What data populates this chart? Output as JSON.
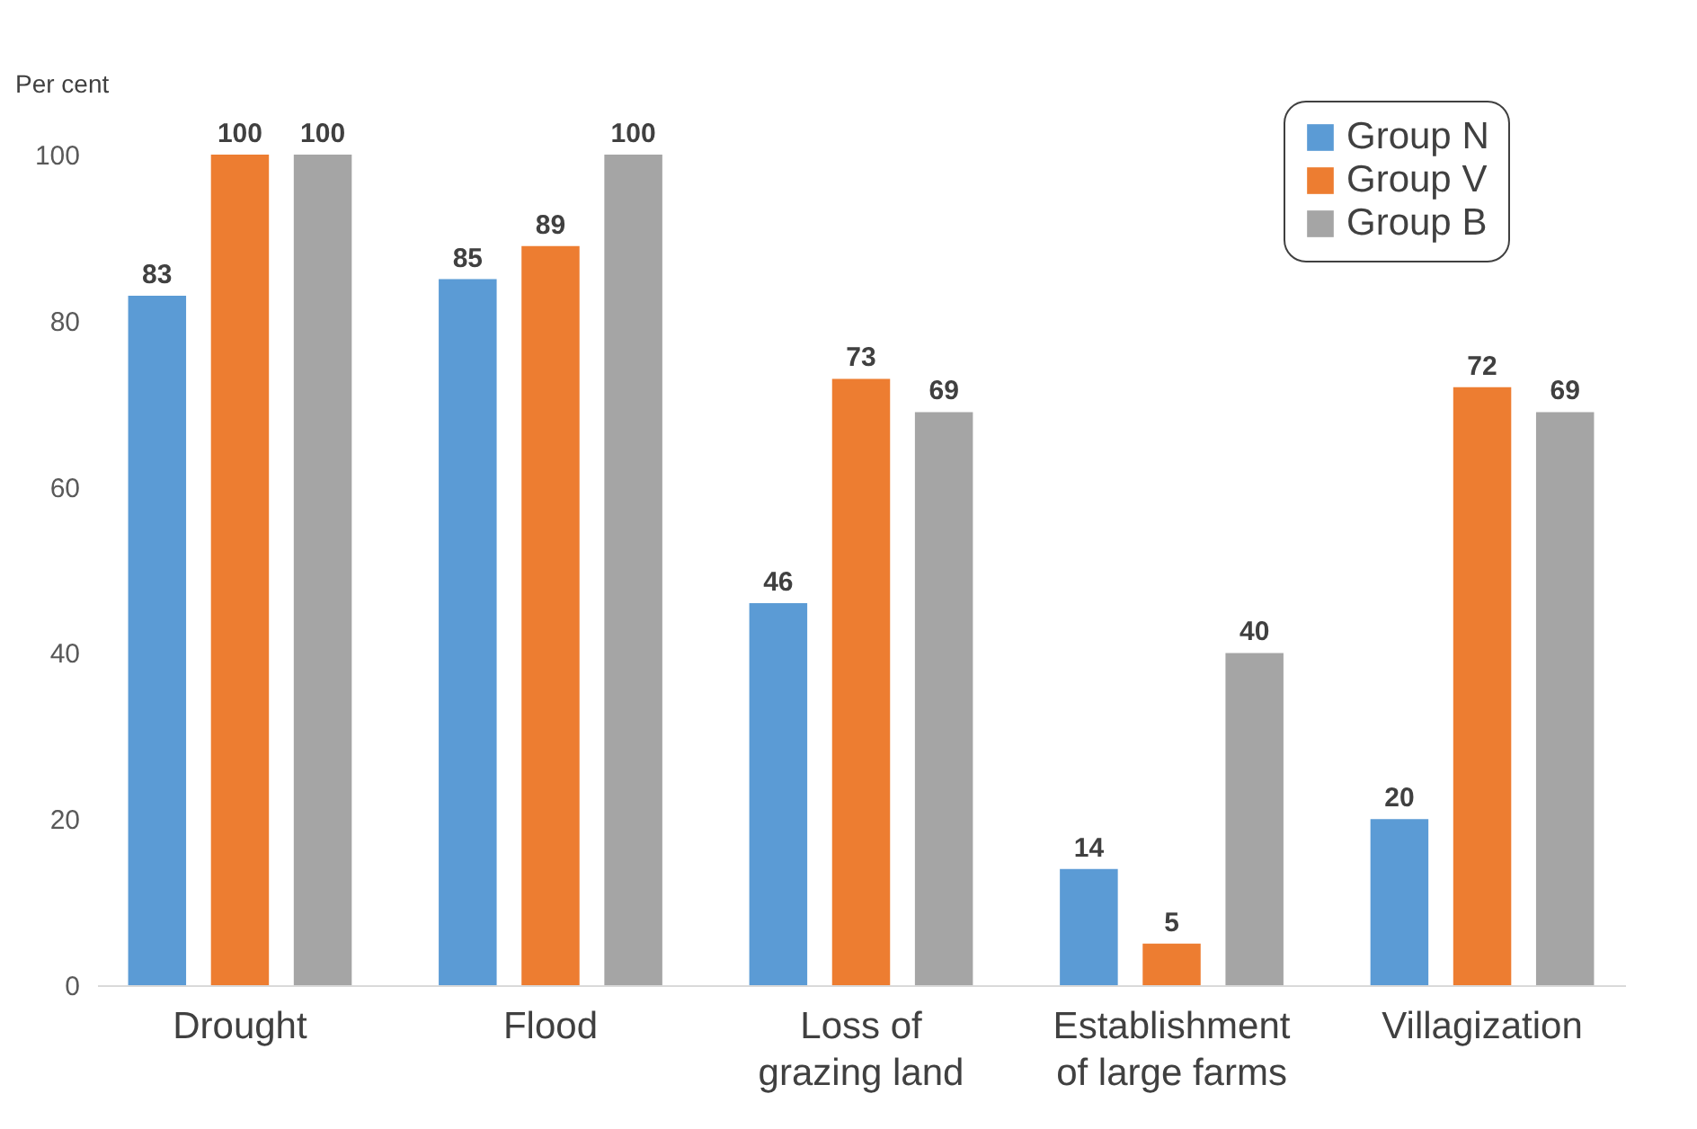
{
  "chart_data": {
    "type": "bar",
    "ylabel": "Per cent",
    "categories": [
      "Drought",
      "Flood",
      "Loss of grazing land",
      "Establishment of large farms",
      "Villagization"
    ],
    "series": [
      {
        "name": "Group N",
        "color": "#5b9bd5",
        "values": [
          83,
          85,
          46,
          14,
          20
        ]
      },
      {
        "name": "Group V",
        "color": "#ed7d31",
        "values": [
          100,
          89,
          73,
          5,
          72
        ]
      },
      {
        "name": "Group B",
        "color": "#a5a5a5",
        "values": [
          100,
          100,
          69,
          40,
          69
        ]
      }
    ],
    "ylim": [
      0,
      100
    ],
    "yticks": [
      0,
      20,
      40,
      60,
      80,
      100
    ],
    "grid": false,
    "legend": "top right",
    "data_labels": true
  }
}
